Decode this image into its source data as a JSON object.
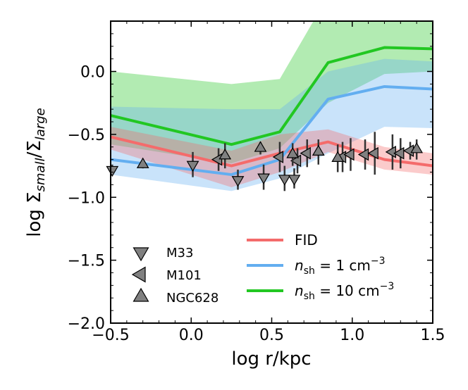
{
  "chart_data": {
    "type": "line",
    "xlabel": "log r/kpc",
    "ylabel": "log Σsmall/Σlarge",
    "xlim": [
      -0.5,
      1.5
    ],
    "ylim": [
      -2.0,
      0.4
    ],
    "xticks": [
      -0.5,
      0.0,
      0.5,
      1.0,
      1.5
    ],
    "xtick_labels": [
      "−0.5",
      "0.0",
      "0.5",
      "1.0",
      "1.5"
    ],
    "yticks": [
      -2.0,
      -1.5,
      -1.0,
      -0.5,
      0.0
    ],
    "ytick_labels": [
      "−2.0",
      "−1.5",
      "−1.0",
      "−0.5",
      "0.0"
    ],
    "grid": false,
    "series": [
      {
        "name": "FID",
        "color": "#f46b6b",
        "x": [
          -0.5,
          0.25,
          0.55,
          0.85,
          1.2,
          1.5
        ],
        "y": [
          -0.52,
          -0.75,
          -0.65,
          -0.56,
          -0.7,
          -0.75
        ],
        "band_low": [
          -0.62,
          -0.92,
          -0.8,
          -0.64,
          -0.78,
          -0.82
        ],
        "band_high": [
          -0.44,
          -0.63,
          -0.5,
          -0.46,
          -0.6,
          -0.65
        ]
      },
      {
        "name": "n_sh = 1 cm^-3",
        "color": "#63aef0",
        "x": [
          -0.5,
          0.25,
          0.55,
          0.85,
          1.2,
          1.5
        ],
        "y": [
          -0.7,
          -0.82,
          -0.7,
          -0.22,
          -0.12,
          -0.14
        ],
        "band_low": [
          -0.82,
          -0.95,
          -0.85,
          -0.65,
          -0.44,
          -0.45
        ],
        "band_high": [
          -0.28,
          -0.3,
          -0.3,
          0.0,
          0.1,
          0.08
        ]
      },
      {
        "name": "n_sh = 10 cm^-3",
        "color": "#22c722",
        "x": [
          -0.5,
          0.25,
          0.55,
          0.85,
          1.2,
          1.5
        ],
        "y": [
          -0.35,
          -0.58,
          -0.48,
          0.07,
          0.19,
          0.18
        ],
        "band_low": [
          -0.58,
          -0.73,
          -0.61,
          -0.25,
          -0.02,
          0.0
        ],
        "band_high": [
          0.0,
          -0.1,
          -0.06,
          0.6,
          0.6,
          0.6
        ]
      }
    ],
    "observations": [
      {
        "name": "M33",
        "marker": "triangle-down",
        "points": [
          {
            "x": -0.49,
            "y": -0.78,
            "err": 0.04
          },
          {
            "x": 0.01,
            "y": -0.74,
            "err": 0.1
          },
          {
            "x": 0.29,
            "y": -0.86,
            "err": 0.08
          },
          {
            "x": 0.45,
            "y": -0.84,
            "err": 0.1
          },
          {
            "x": 0.58,
            "y": -0.85,
            "err": 0.1
          },
          {
            "x": 0.64,
            "y": -0.85,
            "err": 0.08
          }
        ]
      },
      {
        "name": "M101",
        "marker": "triangle-left",
        "points": [
          {
            "x": 0.17,
            "y": -0.7,
            "err": 0.09
          },
          {
            "x": 0.55,
            "y": -0.68,
            "err": 0.12
          },
          {
            "x": 0.66,
            "y": -0.71,
            "err": 0.1
          },
          {
            "x": 0.72,
            "y": -0.65,
            "err": 0.11
          },
          {
            "x": 0.94,
            "y": -0.68,
            "err": 0.12
          },
          {
            "x": 0.99,
            "y": -0.66,
            "err": 0.13
          },
          {
            "x": 1.08,
            "y": -0.66,
            "err": 0.12
          },
          {
            "x": 1.14,
            "y": -0.65,
            "err": 0.17
          },
          {
            "x": 1.25,
            "y": -0.64,
            "err": 0.14
          },
          {
            "x": 1.3,
            "y": -0.65,
            "err": 0.12
          },
          {
            "x": 1.36,
            "y": -0.63,
            "err": 0.07
          }
        ]
      },
      {
        "name": "NGC628",
        "marker": "triangle-up",
        "points": [
          {
            "x": -0.3,
            "y": -0.74,
            "err": 0.03
          },
          {
            "x": 0.21,
            "y": -0.67,
            "err": 0.1
          },
          {
            "x": 0.43,
            "y": -0.61,
            "err": 0.05
          },
          {
            "x": 0.63,
            "y": -0.66,
            "err": 0.09
          },
          {
            "x": 0.79,
            "y": -0.64,
            "err": 0.1
          },
          {
            "x": 0.91,
            "y": -0.69,
            "err": 0.11
          },
          {
            "x": 1.4,
            "y": -0.62,
            "err": 0.08
          }
        ]
      }
    ],
    "legend_markers_placement": "lower-left",
    "legend_lines_placement": "lower-right",
    "legend_marker_labels": [
      "M33",
      "M101",
      "NGC628"
    ],
    "legend_line_labels": [
      "FID",
      "n_sh = 1 cm^-3",
      "n_sh = 10 cm^-3"
    ],
    "legend_line_display": [
      {
        "label": "FID"
      },
      {
        "base": "n",
        "sub": "sh",
        "rest": " = 1 cm",
        "sup": "−3"
      },
      {
        "base": "n",
        "sub": "sh",
        "rest": " = 10 cm",
        "sup": "−3"
      }
    ]
  }
}
